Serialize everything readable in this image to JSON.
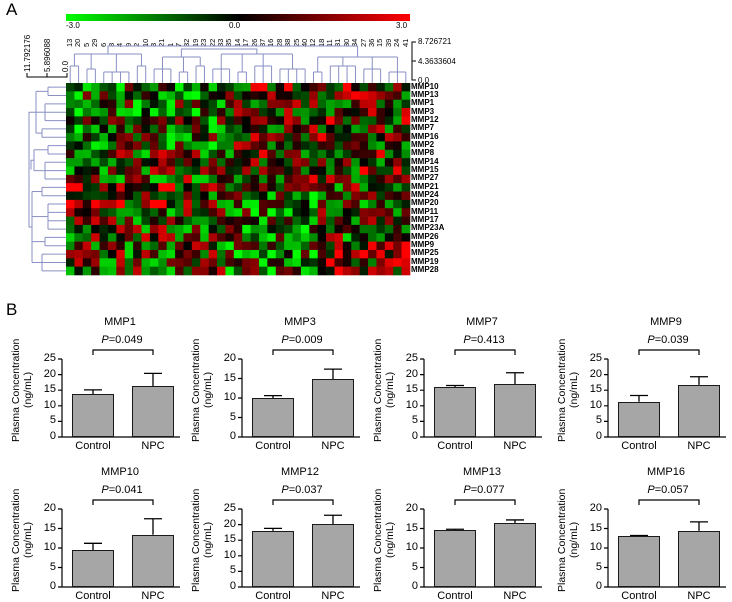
{
  "panels": {
    "a_label": "A",
    "b_label": "B"
  },
  "heatmap": {
    "color_scale": {
      "min_label": "-3.0",
      "mid_label": "0.0",
      "max_label": "3.0",
      "low_color": "#00ff00",
      "mid_color": "#000000",
      "high_color": "#ff0000"
    },
    "column_dendrogram_scale": [
      "8.726721",
      "4.3633604",
      "0.0"
    ],
    "row_dendrogram_scale": [
      "11.792176",
      "5.896088",
      "0.0"
    ],
    "columns": [
      "13",
      "20",
      "5",
      "29",
      "6",
      "8",
      "4",
      "9",
      "2",
      "10",
      "3",
      "21",
      "1",
      "7",
      "32",
      "19",
      "23",
      "22",
      "33",
      "35",
      "14",
      "17",
      "26",
      "37",
      "16",
      "28",
      "38",
      "25",
      "40",
      "12",
      "18",
      "11",
      "31",
      "30",
      "34",
      "27",
      "36",
      "15",
      "39",
      "24",
      "41"
    ],
    "rows": [
      "MMP10",
      "MMP13",
      "MMP1",
      "MMP3",
      "MMP12",
      "MMP7",
      "MMP16",
      "MMP2",
      "MMP8",
      "MMP14",
      "MMP15",
      "MMP27",
      "MMP21",
      "MMP24",
      "MMP20",
      "MMP11",
      "MMP17",
      "MMP23A",
      "MMP26",
      "MMP9",
      "MMP25",
      "MMP19",
      "MMP28"
    ],
    "dendrogram_color": "#8a8fc4"
  },
  "chart_data": {
    "type": "bar",
    "title": "",
    "xlabel": "",
    "ylabel": "Plasma Concentration (ng/mL)",
    "categories": [
      "Control",
      "NPC"
    ],
    "charts": [
      {
        "title": "MMP1",
        "p_label": "=0.049",
        "ylim": [
          0,
          25
        ],
        "yticks": [
          0,
          5,
          10,
          15,
          20,
          25
        ],
        "values": [
          13.8,
          16.2
        ],
        "errors": [
          1.3,
          4.2
        ]
      },
      {
        "title": "MMP3",
        "p_label": "=0.009",
        "ylim": [
          0,
          20
        ],
        "yticks": [
          0,
          5,
          10,
          15,
          20
        ],
        "values": [
          10.0,
          14.8
        ],
        "errors": [
          0.6,
          2.6
        ]
      },
      {
        "title": "MMP7",
        "p_label": "=0.413",
        "ylim": [
          0,
          25
        ],
        "yticks": [
          0,
          5,
          10,
          15,
          20,
          25
        ],
        "values": [
          16.0,
          16.9
        ],
        "errors": [
          0.5,
          3.7
        ]
      },
      {
        "title": "MMP9",
        "p_label": "=0.039",
        "ylim": [
          0,
          25
        ],
        "yticks": [
          0,
          5,
          10,
          15,
          20,
          25
        ],
        "values": [
          11.3,
          16.7
        ],
        "errors": [
          2.0,
          2.6
        ]
      },
      {
        "title": "MMP10",
        "p_label": "=0.041",
        "ylim": [
          0,
          20
        ],
        "yticks": [
          0,
          5,
          10,
          15,
          20
        ],
        "values": [
          9.5,
          13.4
        ],
        "errors": [
          1.7,
          4.1
        ]
      },
      {
        "title": "MMP12",
        "p_label": "=0.037",
        "ylim": [
          0,
          25
        ],
        "yticks": [
          0,
          5,
          10,
          15,
          20,
          25
        ],
        "values": [
          18.0,
          20.2
        ],
        "errors": [
          0.8,
          2.8
        ]
      },
      {
        "title": "MMP13",
        "p_label": "=0.077",
        "ylim": [
          0,
          20
        ],
        "yticks": [
          0,
          5,
          10,
          15,
          20
        ],
        "values": [
          14.6,
          16.4
        ],
        "errors": [
          0.2,
          0.8
        ]
      },
      {
        "title": "MMP16",
        "p_label": "=0.057",
        "ylim": [
          0,
          20
        ],
        "yticks": [
          0,
          5,
          10,
          15,
          20
        ],
        "values": [
          13.0,
          14.4
        ],
        "errors": [
          0.2,
          2.3
        ]
      }
    ],
    "p_prefix": "P",
    "bar_color": "#a6a6a6",
    "legend": "none",
    "grid": false
  }
}
